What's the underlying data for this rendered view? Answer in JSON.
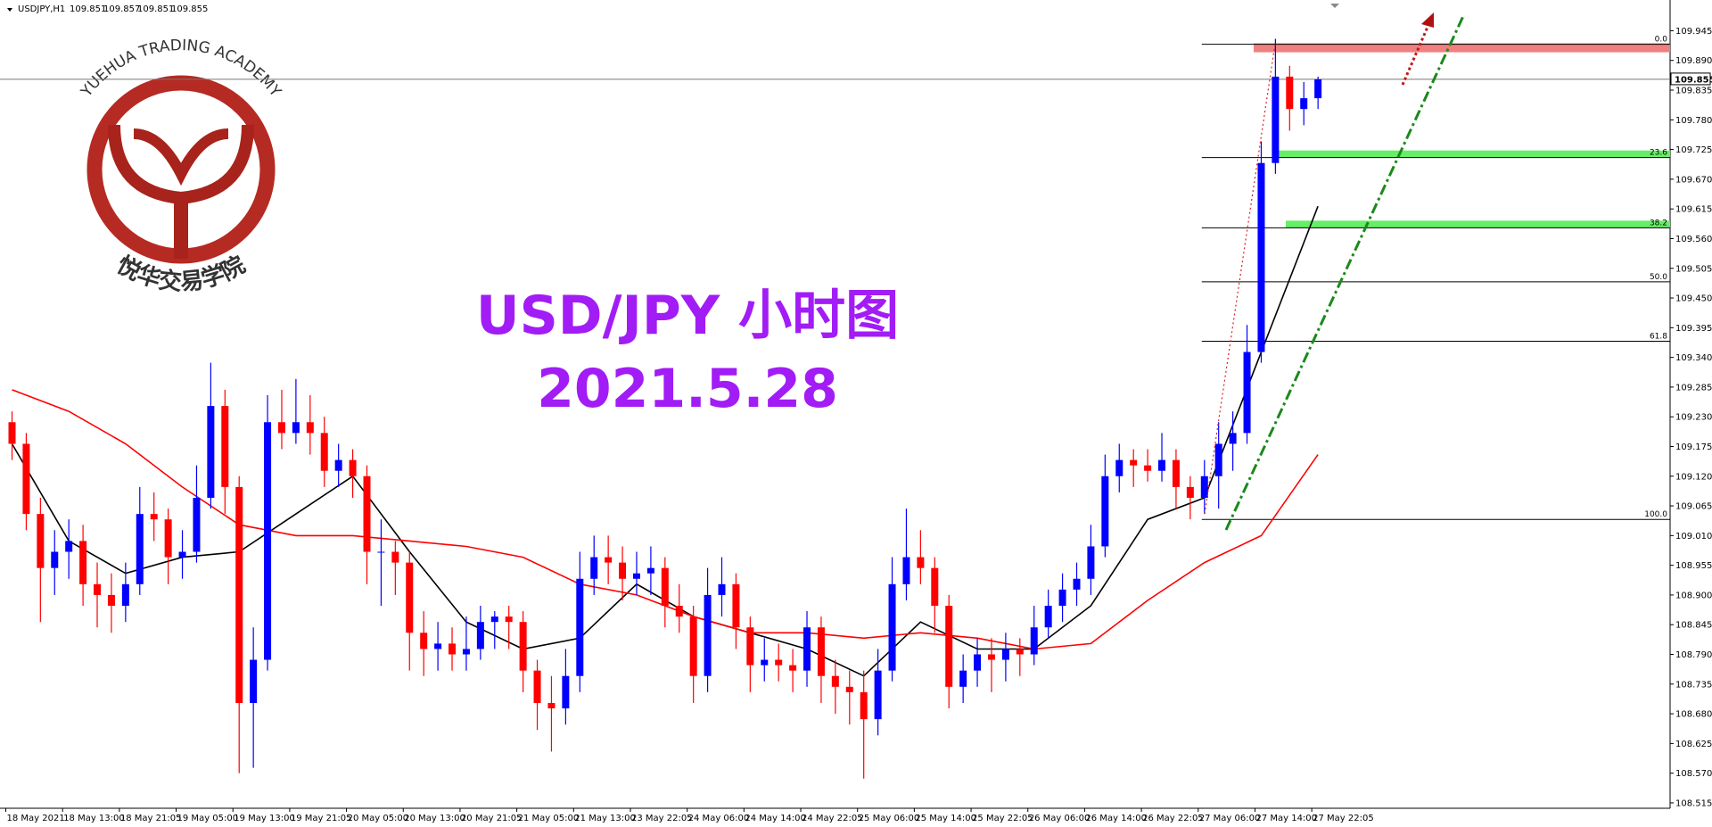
{
  "header": {
    "symbol": "USDJPY,H1",
    "ohlc": [
      109.851,
      109.857,
      109.851,
      109.855
    ]
  },
  "logo": {
    "name_en": "YUEHUA TRADING ACADEMY",
    "name_cn": "悦华交易学院"
  },
  "chart_data": {
    "type": "candlestick",
    "title": "USD/JPY 小时图",
    "subtitle": "2021.5.28",
    "up_color": "#0000ff",
    "down_color": "#ff0000",
    "candles": [
      [
        109.22,
        109.24,
        109.15,
        109.18
      ],
      [
        109.18,
        109.2,
        109.02,
        109.05
      ],
      [
        109.05,
        109.08,
        108.85,
        108.95
      ],
      [
        108.95,
        109.02,
        108.9,
        108.98
      ],
      [
        108.98,
        109.04,
        108.93,
        109.0
      ],
      [
        109.0,
        109.03,
        108.88,
        108.92
      ],
      [
        108.92,
        108.96,
        108.84,
        108.9
      ],
      [
        108.9,
        108.94,
        108.83,
        108.88
      ],
      [
        108.88,
        108.96,
        108.85,
        108.92
      ],
      [
        108.92,
        109.1,
        108.9,
        109.05
      ],
      [
        109.05,
        109.09,
        109.0,
        109.04
      ],
      [
        109.04,
        109.06,
        108.92,
        108.97
      ],
      [
        108.97,
        109.02,
        108.93,
        108.98
      ],
      [
        108.98,
        109.14,
        108.96,
        109.08
      ],
      [
        109.08,
        109.33,
        109.06,
        109.25
      ],
      [
        109.25,
        109.28,
        109.05,
        109.1
      ],
      [
        109.1,
        109.12,
        108.57,
        108.7
      ],
      [
        108.7,
        108.84,
        108.58,
        108.78
      ],
      [
        108.78,
        109.27,
        108.76,
        109.22
      ],
      [
        109.22,
        109.28,
        109.17,
        109.2
      ],
      [
        109.2,
        109.3,
        109.18,
        109.22
      ],
      [
        109.22,
        109.27,
        109.16,
        109.2
      ],
      [
        109.2,
        109.23,
        109.1,
        109.13
      ],
      [
        109.13,
        109.18,
        109.1,
        109.15
      ],
      [
        109.15,
        109.17,
        109.08,
        109.12
      ],
      [
        109.12,
        109.14,
        108.92,
        108.98
      ],
      [
        108.98,
        109.04,
        108.88,
        108.98
      ],
      [
        108.98,
        109.0,
        108.9,
        108.96
      ],
      [
        108.96,
        108.98,
        108.76,
        108.83
      ],
      [
        108.83,
        108.87,
        108.75,
        108.8
      ],
      [
        108.8,
        108.85,
        108.76,
        108.81
      ],
      [
        108.81,
        108.84,
        108.76,
        108.79
      ],
      [
        108.79,
        108.86,
        108.76,
        108.8
      ],
      [
        108.8,
        108.88,
        108.78,
        108.85
      ],
      [
        108.85,
        108.87,
        108.8,
        108.86
      ],
      [
        108.86,
        108.88,
        108.8,
        108.85
      ],
      [
        108.85,
        108.87,
        108.72,
        108.76
      ],
      [
        108.76,
        108.78,
        108.65,
        108.7
      ],
      [
        108.7,
        108.75,
        108.61,
        108.69
      ],
      [
        108.69,
        108.8,
        108.66,
        108.75
      ],
      [
        108.75,
        108.98,
        108.72,
        108.93
      ],
      [
        108.93,
        109.01,
        108.9,
        108.97
      ],
      [
        108.97,
        109.01,
        108.92,
        108.96
      ],
      [
        108.96,
        108.99,
        108.89,
        108.93
      ],
      [
        108.93,
        108.98,
        108.9,
        108.94
      ],
      [
        108.94,
        108.99,
        108.9,
        108.95
      ],
      [
        108.95,
        108.97,
        108.84,
        108.88
      ],
      [
        108.88,
        108.92,
        108.83,
        108.86
      ],
      [
        108.86,
        108.88,
        108.7,
        108.75
      ],
      [
        108.75,
        108.95,
        108.72,
        108.9
      ],
      [
        108.9,
        108.97,
        108.86,
        108.92
      ],
      [
        108.92,
        108.94,
        108.8,
        108.84
      ],
      [
        108.84,
        108.86,
        108.72,
        108.77
      ],
      [
        108.77,
        108.82,
        108.74,
        108.78
      ],
      [
        108.78,
        108.81,
        108.74,
        108.77
      ],
      [
        108.77,
        108.8,
        108.72,
        108.76
      ],
      [
        108.76,
        108.87,
        108.73,
        108.84
      ],
      [
        108.84,
        108.86,
        108.7,
        108.75
      ],
      [
        108.75,
        108.78,
        108.68,
        108.73
      ],
      [
        108.73,
        108.76,
        108.66,
        108.72
      ],
      [
        108.72,
        108.76,
        108.56,
        108.67
      ],
      [
        108.67,
        108.8,
        108.64,
        108.76
      ],
      [
        108.76,
        108.97,
        108.74,
        108.92
      ],
      [
        108.92,
        109.06,
        108.89,
        108.97
      ],
      [
        108.97,
        109.02,
        108.92,
        108.95
      ],
      [
        108.95,
        108.97,
        108.83,
        108.88
      ],
      [
        108.88,
        108.9,
        108.69,
        108.73
      ],
      [
        108.73,
        108.79,
        108.7,
        108.76
      ],
      [
        108.76,
        108.82,
        108.73,
        108.79
      ],
      [
        108.79,
        108.82,
        108.72,
        108.78
      ],
      [
        108.78,
        108.83,
        108.74,
        108.8
      ],
      [
        108.8,
        108.82,
        108.75,
        108.79
      ],
      [
        108.79,
        108.88,
        108.77,
        108.84
      ],
      [
        108.84,
        108.91,
        108.82,
        108.88
      ],
      [
        108.88,
        108.94,
        108.85,
        108.91
      ],
      [
        108.91,
        108.96,
        108.88,
        108.93
      ],
      [
        108.93,
        109.03,
        108.9,
        108.99
      ],
      [
        108.99,
        109.16,
        108.97,
        109.12
      ],
      [
        109.12,
        109.18,
        109.09,
        109.15
      ],
      [
        109.15,
        109.17,
        109.1,
        109.14
      ],
      [
        109.14,
        109.17,
        109.11,
        109.13
      ],
      [
        109.13,
        109.2,
        109.11,
        109.15
      ],
      [
        109.15,
        109.17,
        109.06,
        109.1
      ],
      [
        109.1,
        109.12,
        109.04,
        109.08
      ],
      [
        109.08,
        109.15,
        109.05,
        109.12
      ],
      [
        109.12,
        109.22,
        109.06,
        109.18
      ],
      [
        109.18,
        109.24,
        109.13,
        109.2
      ],
      [
        109.2,
        109.4,
        109.18,
        109.35
      ],
      [
        109.35,
        109.74,
        109.33,
        109.7
      ],
      [
        109.7,
        109.93,
        109.68,
        109.86
      ],
      [
        109.86,
        109.88,
        109.76,
        109.8
      ],
      [
        109.8,
        109.85,
        109.77,
        109.82
      ],
      [
        109.82,
        109.86,
        109.8,
        109.855
      ]
    ],
    "xticks": [
      {
        "value": 0,
        "label": "18 May 2021"
      },
      {
        "value": 4,
        "label": "18 May 13:00"
      },
      {
        "value": 8,
        "label": "18 May 21:05"
      },
      {
        "value": 12,
        "label": "19 May 05:00"
      },
      {
        "value": 16,
        "label": "19 May 13:00"
      },
      {
        "value": 20,
        "label": "19 May 21:05"
      },
      {
        "value": 24,
        "label": "20 May 05:00"
      },
      {
        "value": 28,
        "label": "20 May 13:00"
      },
      {
        "value": 32,
        "label": "20 May 21:05"
      },
      {
        "value": 36,
        "label": "21 May 05:00"
      },
      {
        "value": 40,
        "label": "21 May 13:00"
      },
      {
        "value": 44,
        "label": "23 May 22:05"
      },
      {
        "value": 48,
        "label": "24 May 06:00"
      },
      {
        "value": 52,
        "label": "24 May 14:00"
      },
      {
        "value": 56,
        "label": "24 May 22:05"
      },
      {
        "value": 60,
        "label": "25 May 06:00"
      },
      {
        "value": 64,
        "label": "25 May 14:00"
      },
      {
        "value": 68,
        "label": "25 May 22:05"
      },
      {
        "value": 72,
        "label": "26 May 06:00"
      },
      {
        "value": 76,
        "label": "26 May 14:00"
      },
      {
        "value": 80,
        "label": "26 May 22:05"
      },
      {
        "value": 84,
        "label": "27 May 06:00"
      },
      {
        "value": 88,
        "label": "27 May 14:00"
      },
      {
        "value": 92,
        "label": "27 May 22:05"
      }
    ],
    "ylim": [
      108.505,
      109.992
    ],
    "yticks": [
      109.945,
      {
        "value": 109.89,
        "label": "109.890"
      },
      109.835,
      {
        "value": 109.78,
        "label": "109.780"
      },
      109.725,
      {
        "value": 109.67,
        "label": "109.670"
      },
      109.615,
      {
        "value": 109.56,
        "label": "109.560"
      },
      109.505,
      {
        "value": 109.45,
        "label": "109.450"
      },
      109.395,
      {
        "value": 109.34,
        "label": "109.340"
      },
      109.285,
      {
        "value": 109.23,
        "label": "109.230"
      },
      109.175,
      {
        "value": 109.12,
        "label": "109.120"
      },
      109.065,
      {
        "value": 109.01,
        "label": "109.010"
      },
      108.955,
      {
        "value": 108.9,
        "label": "108.900"
      },
      108.845,
      {
        "value": 108.79,
        "label": "108.790"
      },
      108.735,
      {
        "value": 108.68,
        "label": "108.680"
      },
      108.625,
      {
        "value": 108.57,
        "label": "108.570"
      },
      108.515
    ],
    "current_price": 109.855,
    "moving_averages": [
      {
        "color": "#000000",
        "x": [
          0,
          4,
          8,
          12,
          16,
          20,
          24,
          28,
          32,
          36,
          40,
          44,
          48,
          52,
          56,
          60,
          64,
          68,
          72,
          76,
          80,
          84,
          88,
          92
        ],
        "values": [
          109.18,
          109.0,
          108.94,
          108.97,
          108.98,
          109.05,
          109.12,
          108.98,
          108.85,
          108.8,
          108.82,
          108.92,
          108.86,
          108.83,
          108.8,
          108.75,
          108.85,
          108.8,
          108.8,
          108.88,
          109.04,
          109.08,
          109.35,
          109.62
        ]
      },
      {
        "color": "#ff0000",
        "x": [
          0,
          4,
          8,
          12,
          16,
          20,
          24,
          28,
          32,
          36,
          40,
          44,
          48,
          52,
          56,
          60,
          64,
          68,
          72,
          76,
          80,
          84,
          88,
          92
        ],
        "values": [
          109.28,
          109.24,
          109.18,
          109.1,
          109.03,
          109.01,
          109.01,
          109.0,
          108.99,
          108.97,
          108.92,
          108.9,
          108.86,
          108.83,
          108.83,
          108.82,
          108.83,
          108.82,
          108.8,
          108.81,
          108.89,
          108.96,
          109.01,
          109.16
        ]
      }
    ],
    "fibonacci": [
      {
        "label": "0.0",
        "price": 109.92,
        "zone": "#f08080"
      },
      {
        "label": "23.6",
        "price": 109.71,
        "zone": "#66ee66"
      },
      {
        "label": "38.2",
        "price": 109.58,
        "zone": "#66ee66"
      },
      {
        "label": "50.0",
        "price": 109.48
      },
      {
        "label": "61.8",
        "price": 109.37
      },
      {
        "label": "100.0",
        "price": 109.04
      }
    ]
  }
}
